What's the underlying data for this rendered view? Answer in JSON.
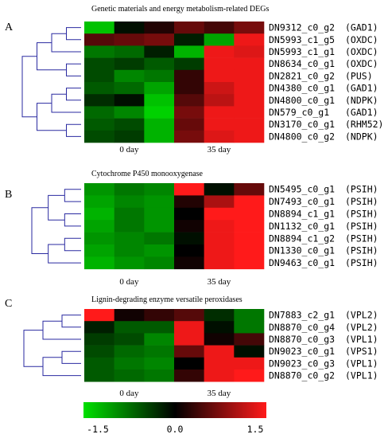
{
  "chart_data": {
    "type": "heatmap",
    "color_scale": {
      "min": -1.5,
      "mid": 0.0,
      "max": 1.5,
      "colors": [
        "#00e000",
        "#000000",
        "#ff1a1a"
      ],
      "tick_labels": [
        "-1.5",
        "0.0",
        "1.5"
      ]
    },
    "panels": [
      {
        "letter": "A",
        "title": "Genetic materials and energy metabolism-related DEGs",
        "column_group_labels": [
          "0 day",
          "35 day"
        ],
        "rows": [
          {
            "gene": "DN9312_c0_g2",
            "annotation": "(GAD1)"
          },
          {
            "gene": "DN5993_c1_g5",
            "annotation": "(OXDC)"
          },
          {
            "gene": "DN5993_c1_g1",
            "annotation": "(OXDC)"
          },
          {
            "gene": "DN8634_c0_g1",
            "annotation": "(OXDC)"
          },
          {
            "gene": "DN2821_c0_g2",
            "annotation": "(PUS)"
          },
          {
            "gene": "DN4380_c0_g1",
            "annotation": "(GAD1)"
          },
          {
            "gene": "DN4800_c0_g1",
            "annotation": "(NDPK)"
          },
          {
            "gene": "DN579_c0_g1",
            "annotation": "(GAD1)"
          },
          {
            "gene": "DN3170_c0_g1",
            "annotation": "(RHM52)"
          },
          {
            "gene": "DN4800_c0_g2",
            "annotation": "(NDPK)"
          }
        ],
        "values": [
          [
            -1.3,
            -0.1,
            0.2,
            0.6,
            0.4,
            0.7
          ],
          [
            0.5,
            0.6,
            0.7,
            -0.2,
            -1.1,
            1.4
          ],
          [
            -0.8,
            -0.7,
            -0.2,
            -1.2,
            1.4,
            1.3
          ],
          [
            -0.5,
            -0.4,
            -0.6,
            -0.4,
            1.4,
            1.4
          ],
          [
            -0.5,
            -0.9,
            -0.8,
            0.3,
            1.4,
            1.4
          ],
          [
            -0.6,
            -0.7,
            -1.1,
            0.3,
            1.2,
            1.4
          ],
          [
            -0.3,
            -0.1,
            -1.3,
            0.5,
            1.1,
            1.4
          ],
          [
            -0.7,
            -0.9,
            -1.4,
            0.7,
            1.4,
            1.4
          ],
          [
            -0.6,
            -0.5,
            -1.2,
            0.6,
            1.4,
            1.4
          ],
          [
            -0.5,
            -0.4,
            -1.2,
            0.7,
            1.3,
            1.4
          ]
        ]
      },
      {
        "letter": "B",
        "title": "Cytochrome P450 monooxygenase",
        "column_group_labels": [
          "0 day",
          "35 day"
        ],
        "rows": [
          {
            "gene": "DN5495_c0_g1",
            "annotation": "(PSIH)"
          },
          {
            "gene": "DN7493_c0_g1",
            "annotation": "(PSIH)"
          },
          {
            "gene": "DN8894_c1_g1",
            "annotation": "(PSIH)"
          },
          {
            "gene": "DN1132_c0_g1",
            "annotation": "(PSIH)"
          },
          {
            "gene": "DN8894_c1_g2",
            "annotation": "(PSIH)"
          },
          {
            "gene": "DN1330_c0_g1",
            "annotation": "(PSIH)"
          },
          {
            "gene": "DN9463_c0_g1",
            "annotation": "(PSIH)"
          }
        ],
        "values": [
          [
            -1.0,
            -0.8,
            -0.9,
            1.5,
            -0.1,
            0.6
          ],
          [
            -1.1,
            -0.9,
            -1.0,
            0.2,
            1.0,
            1.5
          ],
          [
            -1.2,
            -0.8,
            -1.0,
            0.0,
            1.5,
            1.5
          ],
          [
            -1.1,
            -0.8,
            -1.0,
            0.1,
            1.4,
            1.5
          ],
          [
            -1.0,
            -0.9,
            -0.8,
            -0.1,
            1.4,
            1.5
          ],
          [
            -1.1,
            -0.9,
            -1.0,
            0.0,
            1.4,
            1.5
          ],
          [
            -1.2,
            -1.0,
            -0.9,
            0.1,
            1.4,
            1.5
          ]
        ]
      },
      {
        "letter": "C",
        "title": "Lignin-degrading enzyme versatile peroxidases",
        "column_group_labels": [
          "0 day",
          "35 day"
        ],
        "rows": [
          {
            "gene": "DN7883_c2_g1",
            "annotation": "(VPL2)"
          },
          {
            "gene": "DN8870_c0_g4",
            "annotation": "(VPL2)"
          },
          {
            "gene": "DN8870_c0_g3",
            "annotation": "(VPL1)"
          },
          {
            "gene": "DN9023_c0_g1",
            "annotation": "(VPS1)"
          },
          {
            "gene": "DN9023_c0_g3",
            "annotation": "(VPL1)"
          },
          {
            "gene": "DN8870_c0_g2",
            "annotation": "(VPL1)"
          }
        ],
        "values": [
          [
            1.5,
            0.1,
            0.3,
            0.5,
            -0.3,
            -0.8
          ],
          [
            -0.2,
            -0.6,
            -0.6,
            1.4,
            -0.1,
            -0.8
          ],
          [
            -0.4,
            -0.5,
            -0.9,
            1.4,
            0.1,
            0.4
          ],
          [
            -0.5,
            -0.7,
            -0.8,
            0.6,
            1.4,
            -0.1
          ],
          [
            -0.6,
            -0.8,
            -0.9,
            0.0,
            1.4,
            1.4
          ],
          [
            -0.6,
            -0.7,
            -0.8,
            0.3,
            1.4,
            1.5
          ]
        ]
      }
    ]
  }
}
